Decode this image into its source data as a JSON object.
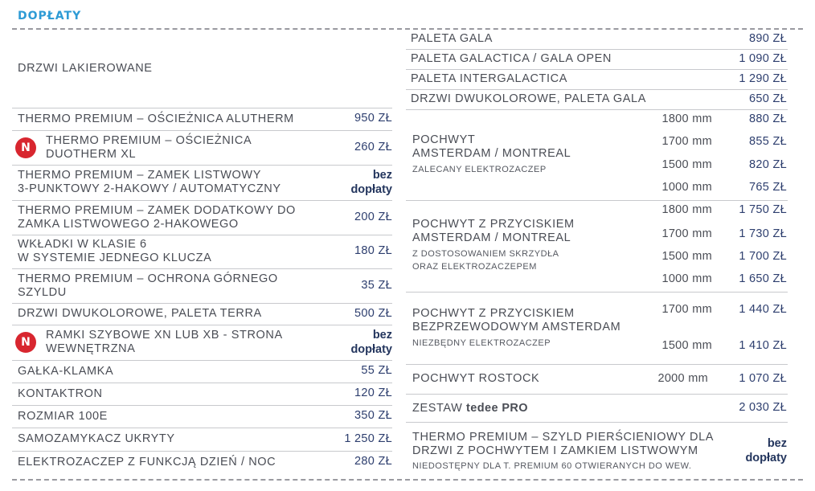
{
  "section_title": "DOPŁATY",
  "left_table": {
    "group_title": "DRZWI LAKIEROWANE",
    "rows": [
      {
        "lines": [
          "THERMO PREMIUM – OŚCIEŻNICA ALUTHERM"
        ],
        "price": "950 ZŁ"
      },
      {
        "badge": "N",
        "lines": [
          "THERMO PREMIUM – OŚCIEŻNICA",
          "DUOTHERM XL"
        ],
        "price": "260 ZŁ"
      },
      {
        "lines": [
          "THERMO PREMIUM – ZAMEK LISTWOWY",
          "3-PUNKTOWY 2-HAKOWY / AUTOMATYCZNY"
        ],
        "price_lines": [
          "bez",
          "dopłaty"
        ]
      },
      {
        "lines": [
          "THERMO PREMIUM – ZAMEK DODATKOWY DO",
          "ZAMKA LISTWOWEGO 2-HAKOWEGO"
        ],
        "price": "200 ZŁ"
      },
      {
        "lines": [
          "WKŁADKI W KLASIE 6",
          "W SYSTEMIE JEDNEGO KLUCZA"
        ],
        "price": "180 ZŁ"
      },
      {
        "lines": [
          "THERMO PREMIUM – OCHRONA GÓRNEGO",
          "SZYLDU"
        ],
        "price": "35 ZŁ"
      },
      {
        "lines": [
          "DRZWI DWUKOLOROWE, PALETA TERRA"
        ],
        "price": "500 ZŁ"
      },
      {
        "badge": "N",
        "lines": [
          "RAMKI SZYBOWE XN LUB XB - STRONA",
          "WEWNĘTRZNA"
        ],
        "price_lines": [
          "bez",
          "dopłaty"
        ]
      },
      {
        "lines": [
          "GAŁKA-KLAMKA"
        ],
        "price": "55 ZŁ"
      },
      {
        "lines": [
          "KONTAKTRON"
        ],
        "price": "120 ZŁ"
      },
      {
        "lines": [
          "ROZMIAR 100E"
        ],
        "price": "350 ZŁ"
      },
      {
        "lines": [
          "SAMOZAMYKACZ UKRYTY"
        ],
        "price": "1 250 ZŁ"
      },
      {
        "lines": [
          "ELEKTROZACZEP Z FUNKCJĄ DZIEŃ / NOC"
        ],
        "price": "280 ZŁ"
      }
    ]
  },
  "right_table": {
    "palettes": [
      {
        "label": "PALETA GALA",
        "price": "890 ZŁ"
      },
      {
        "label": "PALETA GALACTICA / GALA OPEN",
        "price": "1 090 ZŁ"
      },
      {
        "label": "PALETA INTERGALACTICA",
        "price": "1 290 ZŁ"
      },
      {
        "label": "DRZWI DWUKOLOROWE, PALETA GALA",
        "price": "650 ZŁ"
      }
    ],
    "handle_groups": [
      {
        "lines": [
          "POCHWYT",
          "AMSTERDAM / MONTREAL"
        ],
        "note_lines": [
          "ZALECANY ELEKTROZACZEP"
        ],
        "sizes": [
          {
            "size": "1800 mm",
            "price": "880 ZŁ"
          },
          {
            "size": "1700 mm",
            "price": "855 ZŁ"
          },
          {
            "size": "1500 mm",
            "price": "820 ZŁ"
          },
          {
            "size": "1000 mm",
            "price": "765 ZŁ"
          }
        ]
      },
      {
        "lines": [
          "POCHWYT Z PRZYCISKIEM",
          "AMSTERDAM / MONTREAL"
        ],
        "note_lines": [
          "Z DOSTOSOWANIEM SKRZYDŁA",
          "ORAZ ELEKTROZACZEPEM"
        ],
        "sizes": [
          {
            "size": "1800 mm",
            "price": "1 750 ZŁ"
          },
          {
            "size": "1700 mm",
            "price": "1 730 ZŁ"
          },
          {
            "size": "1500 mm",
            "price": "1 700 ZŁ"
          },
          {
            "size": "1000 mm",
            "price": "1 650 ZŁ"
          }
        ]
      },
      {
        "lines": [
          "POCHWYT Z PRZYCISKIEM",
          "BEZPRZEWODOWYM AMSTERDAM"
        ],
        "note_lines": [
          "NIEZBĘDNY ELEKTROZACZEP"
        ],
        "sizes": [
          {
            "size": "1700 mm",
            "price": "1 440 ZŁ"
          },
          {
            "size": "1500 mm",
            "price": "1 410 ZŁ"
          }
        ]
      }
    ],
    "rostock": {
      "label": "POCHWYT ROSTOCK",
      "size": "2000 mm",
      "price": "1 070 ZŁ"
    },
    "tedee": {
      "label_prefix": "ZESTAW",
      "brand": "tedee PRO",
      "price": "2 030 ZŁ"
    },
    "szyld": {
      "lines": [
        "THERMO PREMIUM – SZYLD PIERŚCIENIOWY DLA",
        "DRZWI Z POCHWYTEM I ZAMKIEM LISTWOWYM"
      ],
      "note": "NIEDOSTĘPNY DLA T. PREMIUM 60 OTWIERANYCH DO WEW.",
      "price_lines": [
        "bez",
        "dopłaty"
      ]
    }
  },
  "colors": {
    "accent": "#2e9bd5",
    "price": "#2d3e6e",
    "badge": "#d8262f",
    "text": "#4a4d55"
  }
}
